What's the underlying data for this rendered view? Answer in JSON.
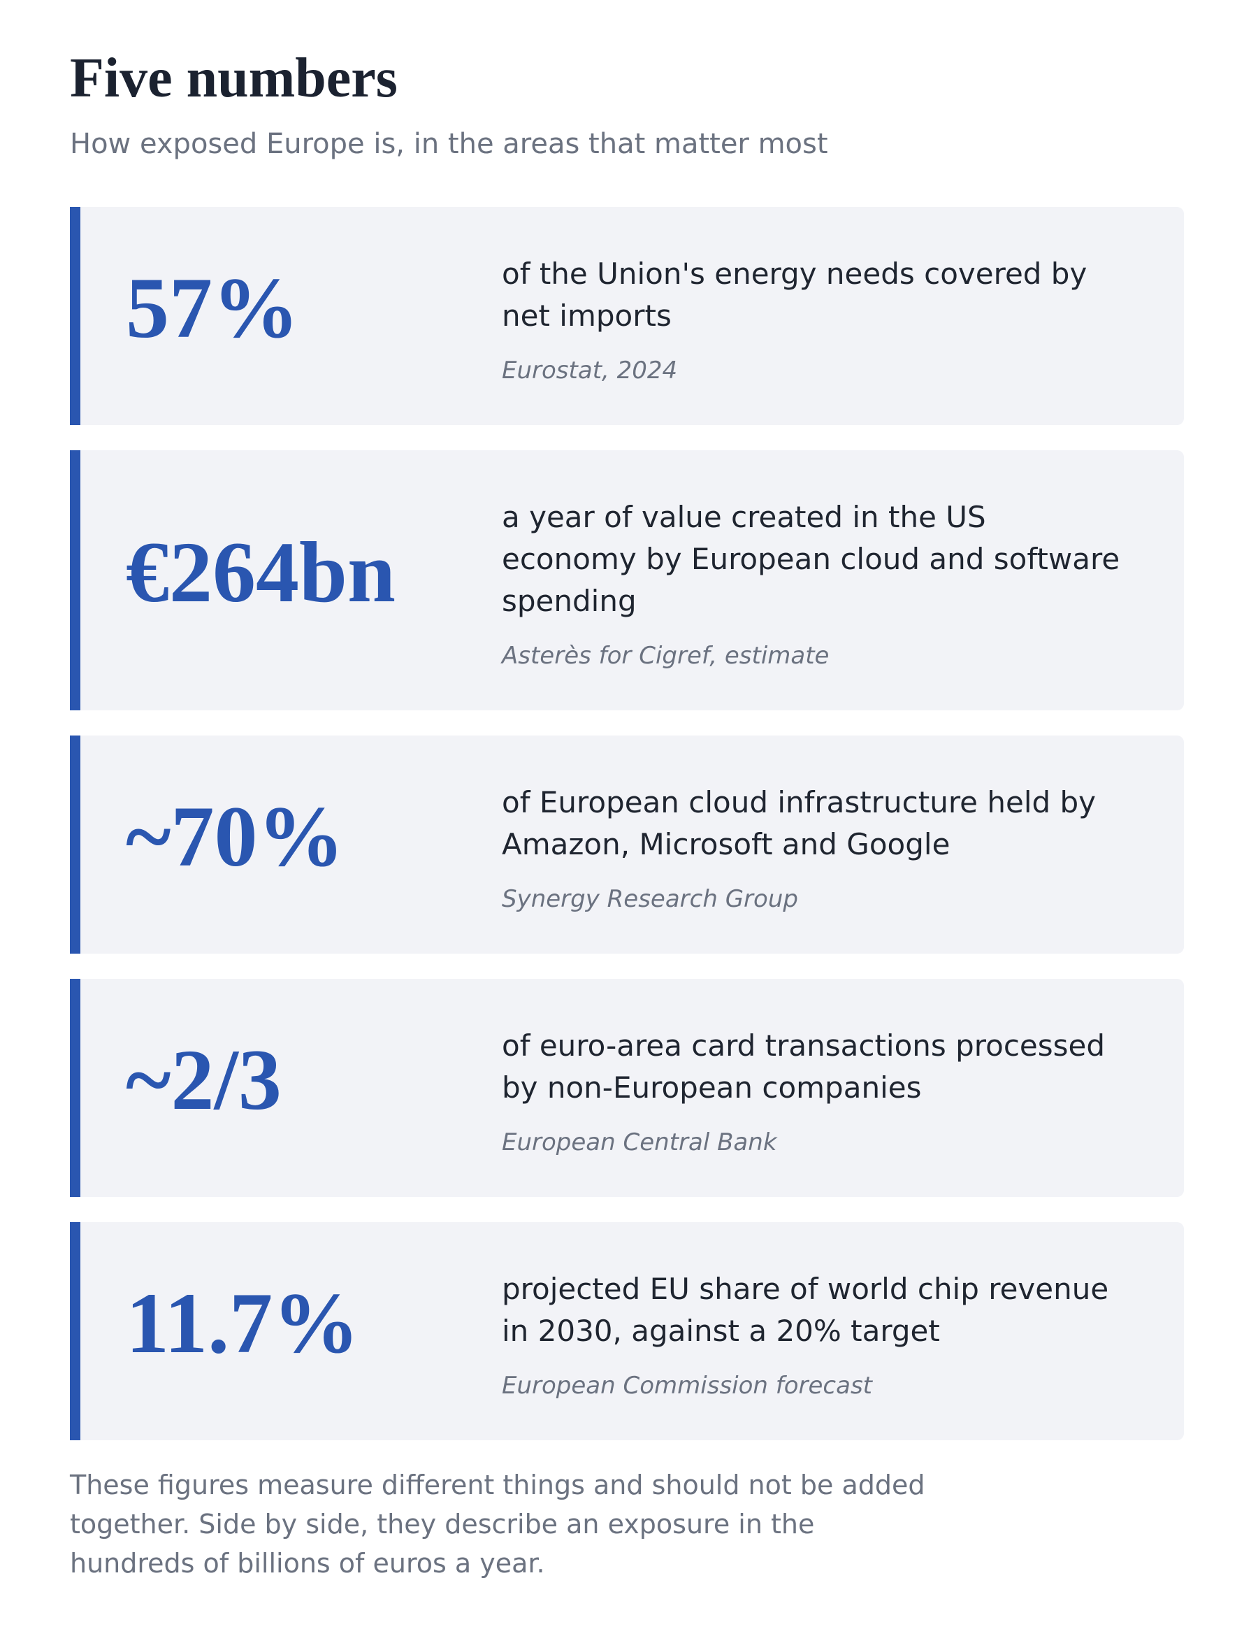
{
  "header": {
    "title": "Five numbers",
    "subtitle": "How exposed Europe is, in the areas that matter most"
  },
  "cards": [
    {
      "figure": "57%",
      "description": "of the Union's energy needs covered by net imports",
      "source": "Eurostat, 2024"
    },
    {
      "figure": "€264bn",
      "description": "a year of value created in the US economy by European cloud and software spending",
      "source": "Asterès for Cigref, estimate"
    },
    {
      "figure": "~70%",
      "description": "of European cloud infrastructure held by Amazon, Microsoft and Google",
      "source": "Synergy Research Group"
    },
    {
      "figure": "~2/3",
      "description": "of euro-area card transactions processed by non-European companies",
      "source": "European Central Bank"
    },
    {
      "figure": "11.7%",
      "description": "projected EU share of world chip revenue in 2030, against a 20% target",
      "source": "European Commission forecast"
    }
  ],
  "footnote": "These figures measure different things and should not be added together. Side by side, they describe an exposure in the hundreds of billions of euros a year."
}
